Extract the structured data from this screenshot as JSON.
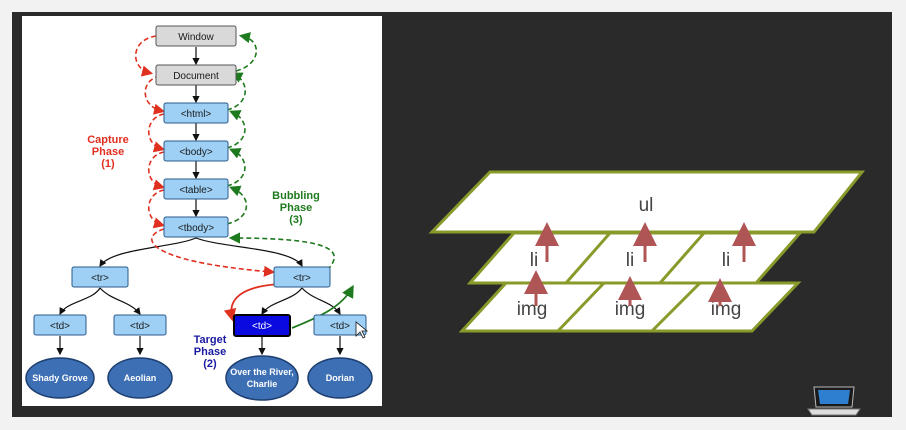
{
  "dom_tree": {
    "nodes": {
      "window": "Window",
      "document": "Document",
      "html": "<html>",
      "body": "<body>",
      "table": "<table>",
      "tbody": "<tbody>",
      "tr_left": "<tr>",
      "tr_right": "<tr>",
      "td_1": "<td>",
      "td_2": "<td>",
      "td_3": "<td>",
      "td_4": "<td>"
    },
    "leaves": {
      "leaf_1": "Shady Grove",
      "leaf_2": "Aeolian",
      "leaf_3_line1": "Over the River,",
      "leaf_3_line2": "Charlie",
      "leaf_4": "Dorian"
    },
    "phases": {
      "capture": [
        "Capture",
        "Phase",
        "(1)"
      ],
      "bubbling": [
        "Bubbling",
        "Phase",
        "(3)"
      ],
      "target": [
        "Target",
        "Phase",
        "(2)"
      ]
    },
    "colors": {
      "capture": "#e03020",
      "bubbling": "#1e7a1e",
      "target": "#1a1aa0",
      "node_gray": "#d9d9d9",
      "node_blue": "#9ed0f5",
      "target_node": "#0a0ae0",
      "leaf": "#3d6fb5"
    }
  },
  "layers": {
    "ul": "ul",
    "li": [
      "li",
      "li",
      "li"
    ],
    "img": [
      "img",
      "img",
      "img"
    ],
    "colors": {
      "border": "#8a9a2a",
      "arrow": "#b05555"
    }
  }
}
